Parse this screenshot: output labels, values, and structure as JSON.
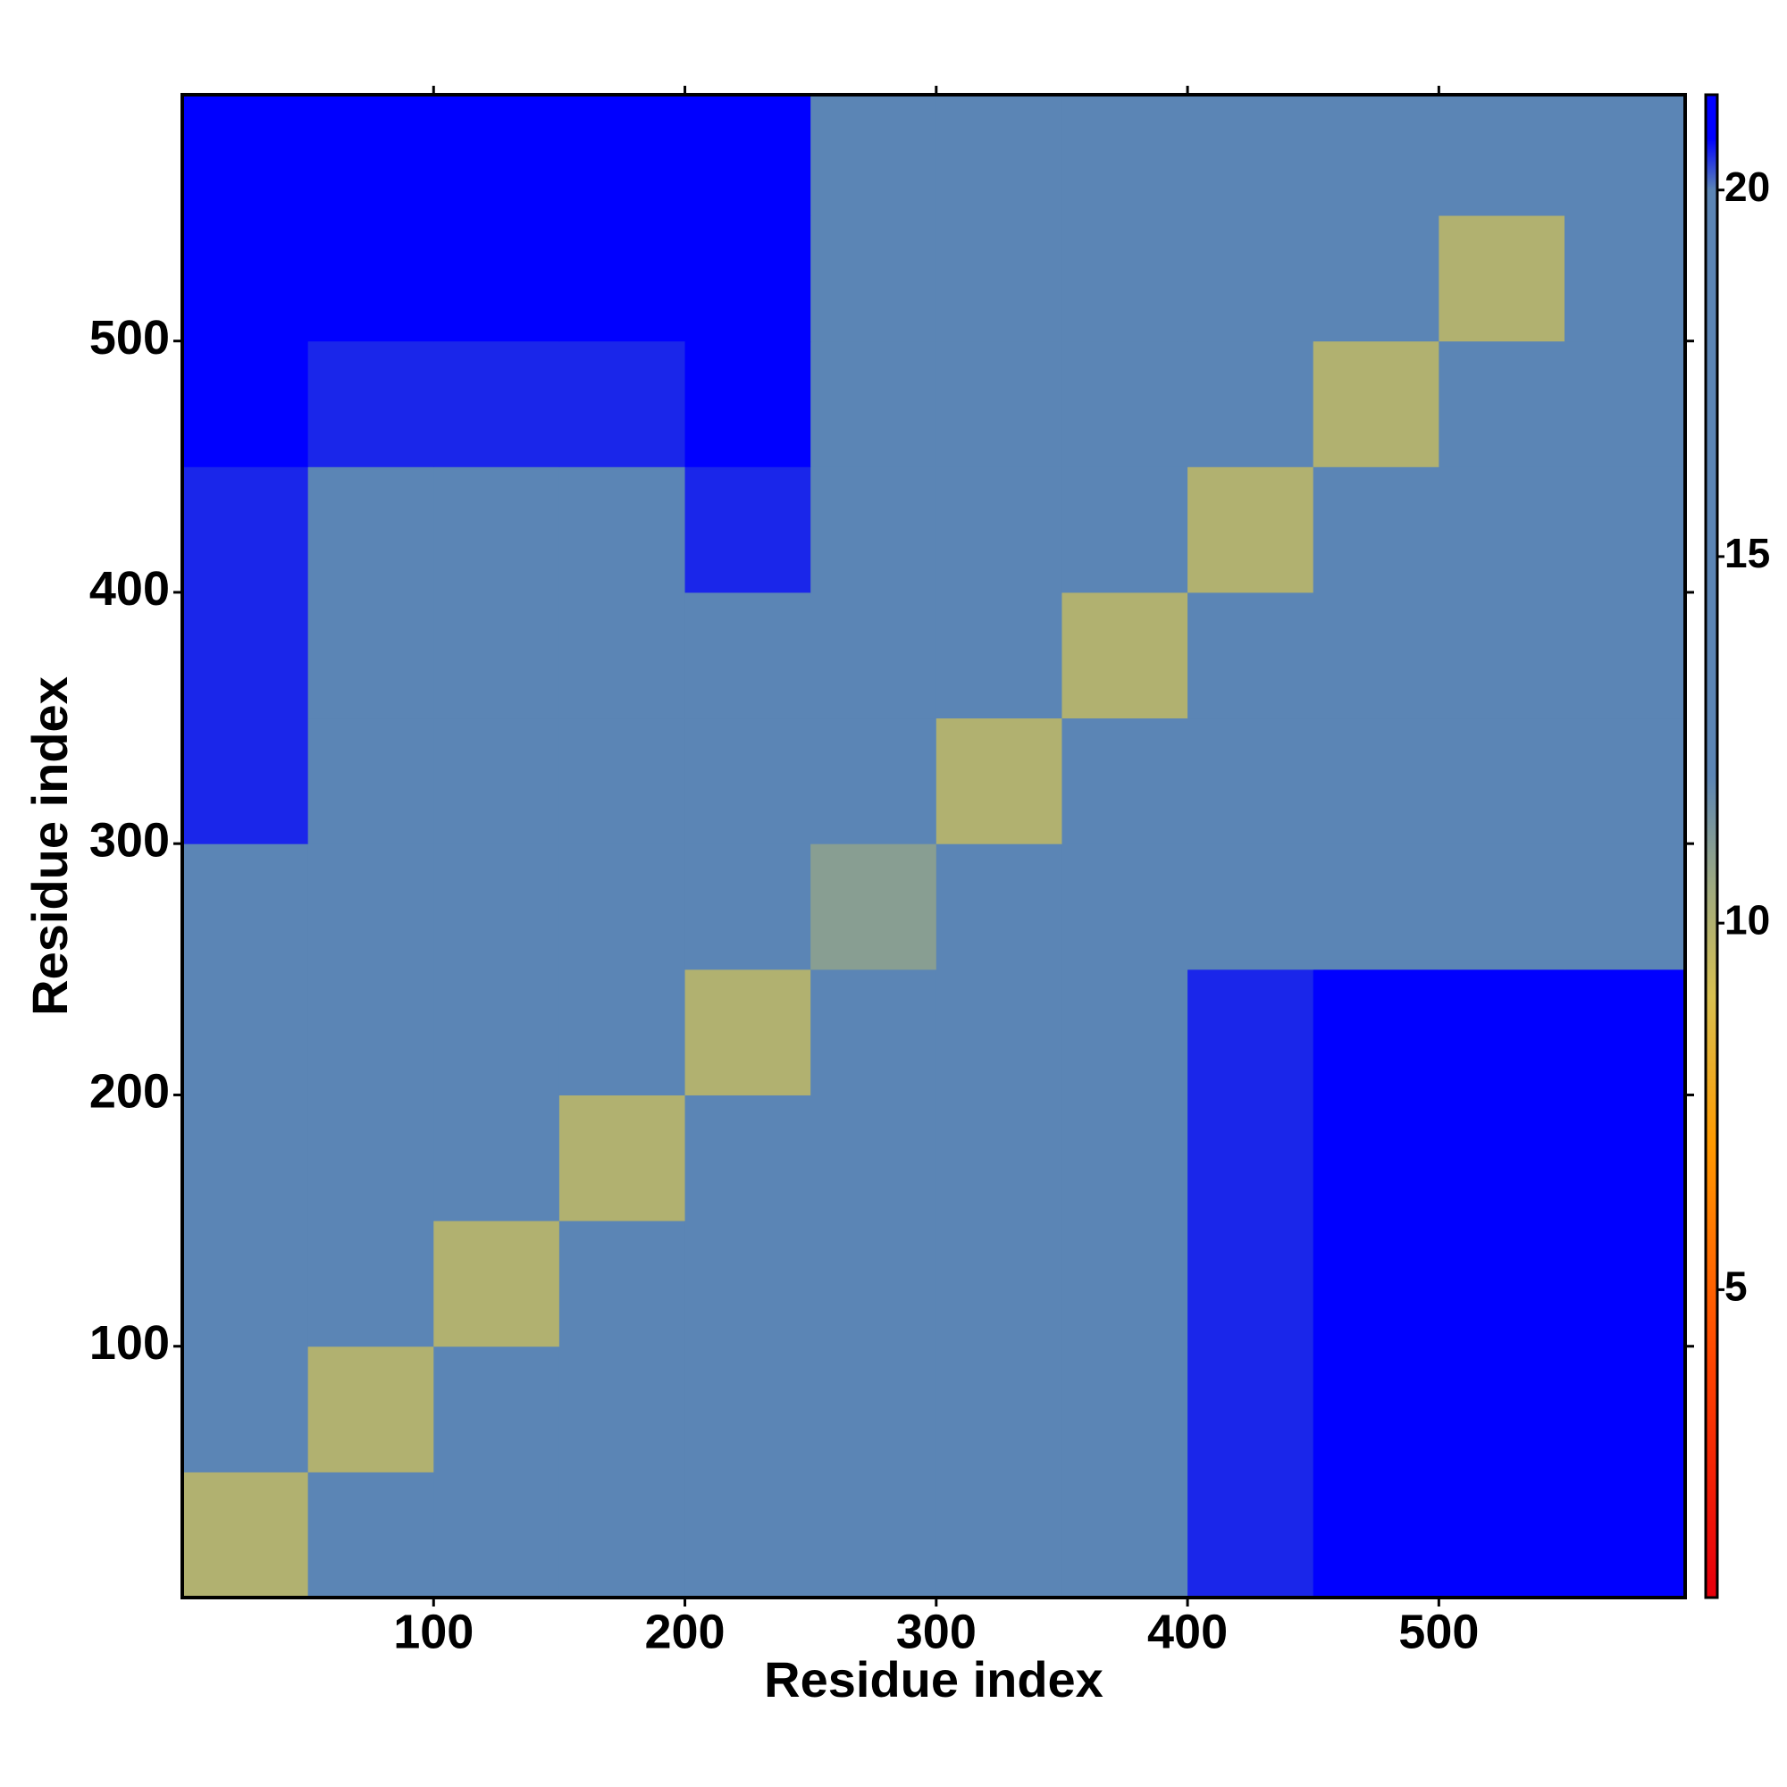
{
  "chart_data": {
    "type": "heatmap",
    "x_label": "Residue index",
    "y_label": "Residue index",
    "xlim": [
      0,
      598
    ],
    "ylim": [
      0,
      598
    ],
    "xticks": [
      100,
      200,
      300,
      400,
      500
    ],
    "yticks": [
      100,
      200,
      300,
      400,
      500
    ],
    "xbins": [
      0,
      50,
      100,
      150,
      200,
      250,
      300,
      350,
      400,
      450,
      500,
      550,
      598
    ],
    "ybins": [
      0,
      50,
      100,
      150,
      200,
      250,
      300,
      350,
      400,
      450,
      500,
      550,
      598
    ],
    "z": [
      [
        10,
        15,
        17,
        18,
        19,
        20,
        20,
        20,
        20.5,
        21,
        21,
        21
      ],
      [
        15,
        10,
        16,
        18,
        19,
        20,
        20,
        20,
        20.5,
        21,
        21,
        21
      ],
      [
        17,
        15,
        10,
        15,
        18,
        19.5,
        20,
        20,
        20.5,
        21,
        21,
        21
      ],
      [
        18,
        17,
        15,
        10,
        15,
        19,
        20,
        20,
        20.5,
        21,
        21,
        21
      ],
      [
        18.5,
        18,
        17,
        15,
        10,
        17,
        19.5,
        20,
        20.5,
        21,
        21,
        21
      ],
      [
        20,
        19.5,
        19,
        18,
        16,
        11,
        17,
        17,
        17,
        17,
        17,
        19
      ],
      [
        20.5,
        20,
        20,
        19.5,
        20,
        17,
        10,
        15,
        17,
        17,
        17,
        18.5
      ],
      [
        20.5,
        20,
        19.5,
        19.5,
        20,
        17,
        15,
        10,
        15,
        17,
        17,
        18.5
      ],
      [
        20.5,
        20,
        19.5,
        19.5,
        20.5,
        17,
        16,
        15,
        10,
        15,
        16,
        18.5
      ],
      [
        21,
        20.5,
        20.5,
        20.5,
        21,
        17,
        17,
        16,
        15,
        10,
        15,
        18
      ],
      [
        21,
        21,
        21,
        21,
        21,
        17,
        17,
        17,
        16,
        15,
        10,
        17
      ],
      [
        21,
        21,
        21,
        21,
        21,
        19,
        19,
        19,
        19,
        19,
        17,
        12
      ]
    ],
    "zlim": [
      0.8,
      21.3
    ],
    "zticks": [
      5,
      10,
      15,
      20
    ],
    "colorscale": [
      {
        "value": 1,
        "color": "#e8000b"
      },
      {
        "value": 4,
        "color": "#ff4500"
      },
      {
        "value": 7,
        "color": "#ff9a00"
      },
      {
        "value": 9,
        "color": "#d8c050"
      },
      {
        "value": 10.5,
        "color": "#9eaa80"
      },
      {
        "value": 12,
        "color": "#5b85b5"
      },
      {
        "value": 20,
        "color": "#5b85b5"
      },
      {
        "value": 20.7,
        "color": "#0000ff"
      }
    ]
  }
}
